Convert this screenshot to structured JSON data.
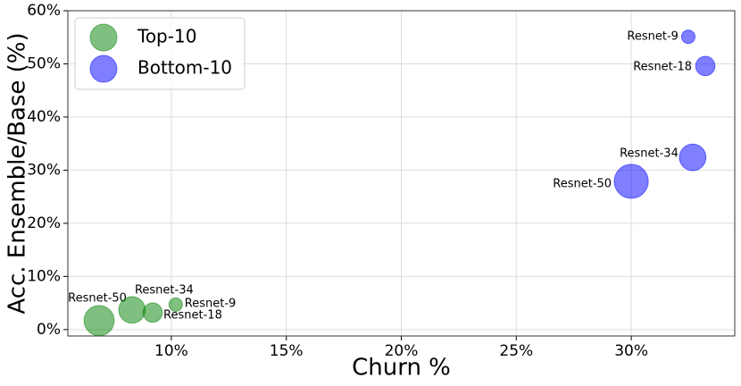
{
  "chart_data": {
    "type": "scatter",
    "xlabel": "Churn %",
    "ylabel": "Acc. Ensemble/Base (%)",
    "xlim": [
      5.5,
      34.5
    ],
    "ylim": [
      -1.2,
      60
    ],
    "xticks": [
      {
        "value": 10,
        "label": "10%"
      },
      {
        "value": 15,
        "label": "15%"
      },
      {
        "value": 20,
        "label": "20%"
      },
      {
        "value": 25,
        "label": "25%"
      },
      {
        "value": 30,
        "label": "30%"
      }
    ],
    "yticks": [
      {
        "value": 0,
        "label": "0%"
      },
      {
        "value": 10,
        "label": "10%"
      },
      {
        "value": 20,
        "label": "20%"
      },
      {
        "value": 30,
        "label": "30%"
      },
      {
        "value": 40,
        "label": "40%"
      },
      {
        "value": 50,
        "label": "50%"
      },
      {
        "value": 60,
        "label": "60%"
      }
    ],
    "grid": true,
    "legend": "upper left",
    "series": [
      {
        "name": "Top-10",
        "color": "green",
        "labels": [
          "Resnet-50",
          "Resnet-34",
          "Resnet-18",
          "Resnet-9"
        ],
        "x": [
          6.86,
          8.29,
          9.19,
          10.19
        ],
        "values": [
          1.7,
          3.7,
          3.2,
          4.7
        ],
        "sizes": [
          1100,
          850,
          450,
          220
        ]
      },
      {
        "name": "Bottom-10",
        "color": "blue",
        "labels": [
          "Resnet-50",
          "Resnet-34",
          "Resnet-18",
          "Resnet-9"
        ],
        "x": [
          30.0,
          32.67,
          33.22,
          32.48
        ],
        "values": [
          27.9,
          32.4,
          49.6,
          55.1
        ],
        "sizes": [
          1400,
          850,
          450,
          220
        ]
      }
    ]
  }
}
